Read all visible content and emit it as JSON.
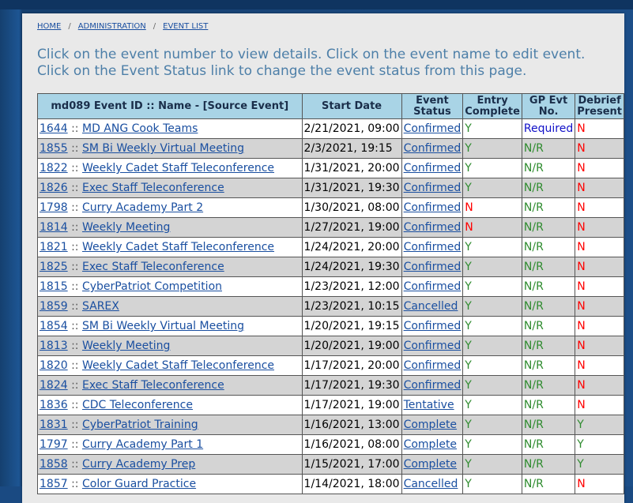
{
  "breadcrumb": {
    "home": "HOME",
    "admin": "ADMINISTRATION",
    "list": "EVENT LIST",
    "sep": "/"
  },
  "instructions": "Click on the event number to view details. Click on the event name to edit event. Click on the Event Status link to change the event status from this page.",
  "table": {
    "headers": {
      "event": "md089 Event ID :: Name - [Source Event]",
      "start": "Start Date",
      "status_1": "Event",
      "status_2": "Status",
      "entry_1": "Entry",
      "entry_2": "Complete",
      "gp_1": "GP Evt",
      "gp_2": "No.",
      "debrief_1": "Debrief",
      "debrief_2": "Present"
    },
    "separator": "::",
    "rows": [
      {
        "id": "1644",
        "name": "MD ANG Cook Teams",
        "start": "2/21/2021, 09:00",
        "status": "Confirmed",
        "entry": "Y",
        "gp": "Required",
        "debrief": "N"
      },
      {
        "id": "1855",
        "name": "SM Bi Weekly Virtual Meeting",
        "start": "2/3/2021, 19:15",
        "status": "Confirmed",
        "entry": "Y",
        "gp": "N/R",
        "debrief": "N"
      },
      {
        "id": "1822",
        "name": "Weekly Cadet Staff Teleconference",
        "start": "1/31/2021, 20:00",
        "status": "Confirmed",
        "entry": "Y",
        "gp": "N/R",
        "debrief": "N"
      },
      {
        "id": "1826",
        "name": "Exec Staff Teleconference",
        "start": "1/31/2021, 19:30",
        "status": "Confirmed",
        "entry": "Y",
        "gp": "N/R",
        "debrief": "N"
      },
      {
        "id": "1798",
        "name": "Curry Academy Part 2",
        "start": "1/30/2021, 08:00",
        "status": "Confirmed",
        "entry": "N",
        "gp": "N/R",
        "debrief": "N"
      },
      {
        "id": "1814",
        "name": "Weekly Meeting",
        "start": "1/27/2021, 19:00",
        "status": "Confirmed",
        "entry": "N",
        "gp": "N/R",
        "debrief": "N"
      },
      {
        "id": "1821",
        "name": "Weekly Cadet Staff Teleconference",
        "start": "1/24/2021, 20:00",
        "status": "Confirmed",
        "entry": "Y",
        "gp": "N/R",
        "debrief": "N"
      },
      {
        "id": "1825",
        "name": "Exec Staff Teleconference",
        "start": "1/24/2021, 19:30",
        "status": "Confirmed",
        "entry": "Y",
        "gp": "N/R",
        "debrief": "N"
      },
      {
        "id": "1815",
        "name": "CyberPatriot Competition",
        "start": "1/23/2021, 12:00",
        "status": "Confirmed",
        "entry": "Y",
        "gp": "N/R",
        "debrief": "N"
      },
      {
        "id": "1859",
        "name": "SAREX",
        "start": "1/23/2021, 10:15",
        "status": "Cancelled",
        "entry": "Y",
        "gp": "N/R",
        "debrief": "N"
      },
      {
        "id": "1854",
        "name": "SM Bi Weekly Virtual Meeting",
        "start": "1/20/2021, 19:15",
        "status": "Confirmed",
        "entry": "Y",
        "gp": "N/R",
        "debrief": "N"
      },
      {
        "id": "1813",
        "name": "Weekly Meeting",
        "start": "1/20/2021, 19:00",
        "status": "Confirmed",
        "entry": "Y",
        "gp": "N/R",
        "debrief": "N"
      },
      {
        "id": "1820",
        "name": "Weekly Cadet Staff Teleconference",
        "start": "1/17/2021, 20:00",
        "status": "Confirmed",
        "entry": "Y",
        "gp": "N/R",
        "debrief": "N"
      },
      {
        "id": "1824",
        "name": "Exec Staff Teleconference",
        "start": "1/17/2021, 19:30",
        "status": "Confirmed",
        "entry": "Y",
        "gp": "N/R",
        "debrief": "N"
      },
      {
        "id": "1836",
        "name": "CDC Teleconference",
        "start": "1/17/2021, 19:00",
        "status": "Tentative",
        "entry": "Y",
        "gp": "N/R",
        "debrief": "N"
      },
      {
        "id": "1831",
        "name": "CyberPatriot Training",
        "start": "1/16/2021, 13:00",
        "status": "Complete",
        "entry": "Y",
        "gp": "N/R",
        "debrief": "Y"
      },
      {
        "id": "1797",
        "name": "Curry Academy Part 1",
        "start": "1/16/2021, 08:00",
        "status": "Complete",
        "entry": "Y",
        "gp": "N/R",
        "debrief": "Y"
      },
      {
        "id": "1858",
        "name": "Curry Academy Prep",
        "start": "1/15/2021, 17:00",
        "status": "Complete",
        "entry": "Y",
        "gp": "N/R",
        "debrief": "Y"
      },
      {
        "id": "1857",
        "name": "Color Guard Practice",
        "start": "1/14/2021, 18:00",
        "status": "Cancelled",
        "entry": "Y",
        "gp": "N/R",
        "debrief": "N"
      }
    ]
  }
}
